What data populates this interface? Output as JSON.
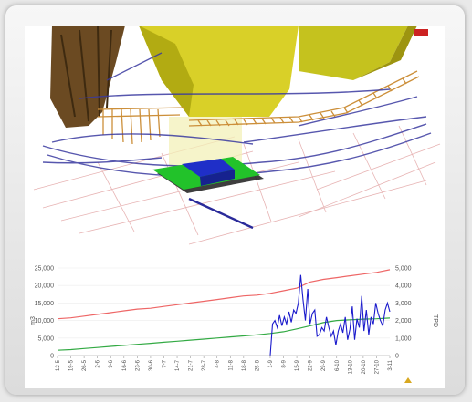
{
  "viewer": {
    "scene_label": "3D mine model view"
  },
  "chart_data": {
    "type": "line",
    "title": "",
    "xlabel": "",
    "ylabel_left": "m3",
    "ylabel_right": "TPD",
    "yticks_left": [
      "0",
      "5,000",
      "10,000",
      "15,000",
      "20,000",
      "25,000"
    ],
    "yticks_right": [
      "0",
      "1,000",
      "2,000",
      "3,000",
      "4,000",
      "5,000"
    ],
    "ylim_left": [
      0,
      25000
    ],
    "ylim_right": [
      0,
      5000
    ],
    "categories": [
      "12-5",
      "19-5",
      "26-5",
      "2-6",
      "9-6",
      "16-6",
      "23-6",
      "30-6",
      "7-7",
      "14-7",
      "21-7",
      "28-7",
      "4-8",
      "11-8",
      "18-8",
      "25-8",
      "1-9",
      "8-9",
      "15-9",
      "22-9",
      "29-9",
      "6-10",
      "13-10",
      "20-10",
      "27-10",
      "3-11"
    ],
    "series": [
      {
        "name": "",
        "axis": "right",
        "color": "#ee6666",
        "values": [
          2100,
          2150,
          2250,
          2350,
          2450,
          2550,
          2650,
          2700,
          2800,
          2900,
          3000,
          3100,
          3200,
          3300,
          3400,
          3450,
          3550,
          3700,
          3850,
          4200,
          4350,
          4450,
          4550,
          4650,
          4750,
          4900
        ]
      },
      {
        "name": "",
        "axis": "left",
        "color": "#33aa44",
        "values": [
          1500,
          1700,
          2000,
          2300,
          2600,
          2900,
          3200,
          3500,
          3800,
          4100,
          4400,
          4700,
          5000,
          5300,
          5600,
          5900,
          6300,
          6800,
          7600,
          8500,
          9400,
          10000,
          10200,
          10400,
          10500,
          10700
        ]
      },
      {
        "name": "",
        "axis": "right",
        "color": "#1a1acc",
        "values": [
          null,
          null,
          null,
          null,
          null,
          null,
          null,
          null,
          null,
          null,
          null,
          null,
          null,
          null,
          null,
          null,
          0,
          1800,
          2400,
          2000,
          3000,
          1100,
          2600,
          1400,
          2900,
          2500
        ],
        "detail": [
          0,
          1800,
          2000,
          1600,
          2300,
          1700,
          2200,
          1800,
          2500,
          1900,
          2600,
          2400,
          3000,
          4600,
          3200,
          2000,
          3800,
          1800,
          2400,
          2600,
          1100,
          1200,
          1600,
          1400,
          2200,
          1600,
          1100,
          1400,
          600,
          1400,
          1800,
          1300,
          2200,
          900,
          1500,
          2800,
          900,
          2100,
          1600,
          3400,
          1400,
          2600,
          1200,
          2200,
          1800,
          3000,
          2400,
          2000,
          1700,
          2600,
          3000,
          2500
        ]
      }
    ]
  }
}
